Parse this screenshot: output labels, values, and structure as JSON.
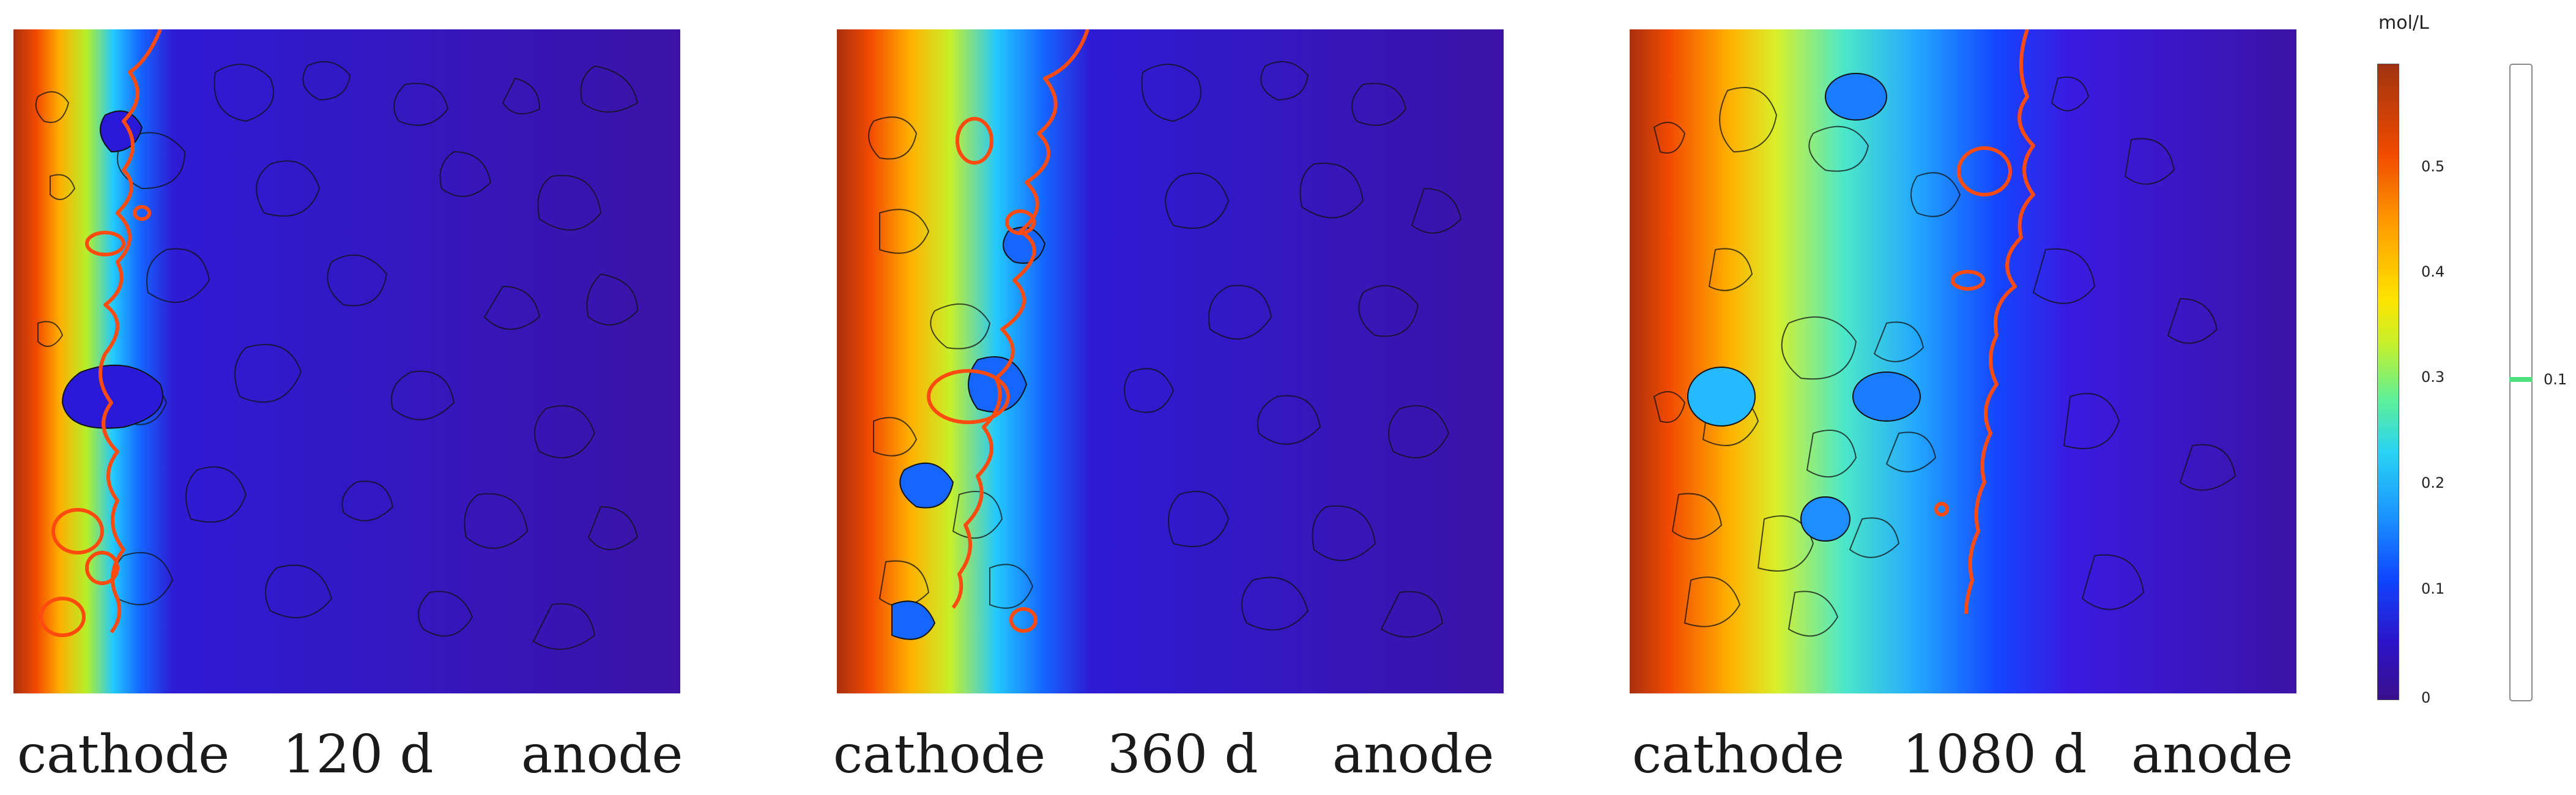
{
  "panels": [
    {
      "cathode": "cathode",
      "time": "120 d",
      "anode": "anode"
    },
    {
      "cathode": "cathode",
      "time": "360 d",
      "anode": "anode"
    },
    {
      "cathode": "cathode",
      "time": "1080 d",
      "anode": "anode"
    }
  ],
  "colorbar": {
    "unit": "mol/L",
    "ticks": [
      "0.5",
      "0.4",
      "0.3",
      "0.2",
      "0.1",
      "0"
    ],
    "max": 0.6,
    "contour_level": "0.1",
    "colors": {
      "high": "#a03410",
      "mid": "#ffe400",
      "low": "#3a0f8c",
      "contour": "#ff4a10",
      "contour_legend": "#4ee07e"
    }
  }
}
